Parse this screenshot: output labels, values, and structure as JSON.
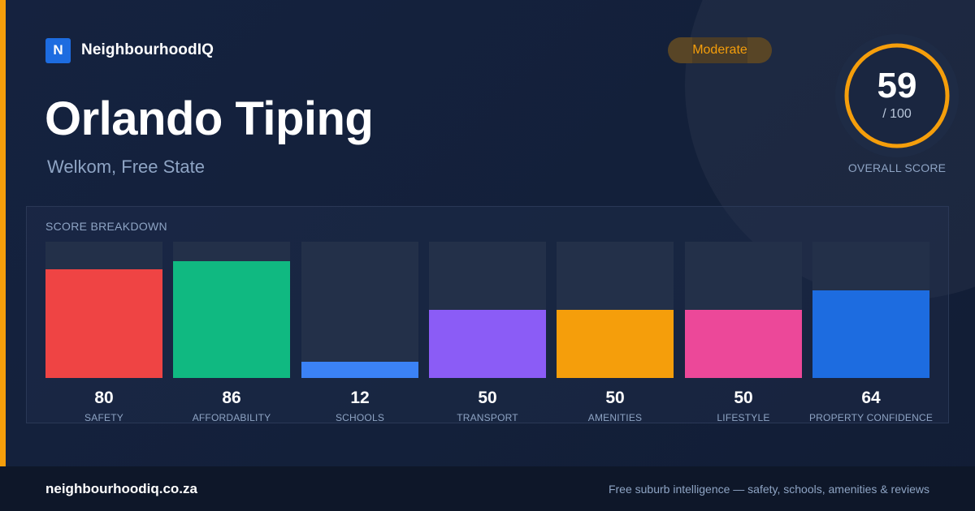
{
  "brand": {
    "logo_letter": "N",
    "name": "NeighbourhoodIQ"
  },
  "suburb": {
    "name": "Orlando Tiping",
    "location": "Welkom, Free State"
  },
  "rating_badge": "Moderate",
  "overall": {
    "score": 59,
    "score_text": "59",
    "max_text": "/ 100",
    "caption": "OVERALL SCORE",
    "ring_color": "#f59e0b"
  },
  "chart_data": {
    "type": "bar",
    "title": "SCORE BREAKDOWN",
    "ylim": [
      0,
      100
    ],
    "categories": [
      "SAFETY",
      "AFFORDABILITY",
      "SCHOOLS",
      "TRANSPORT",
      "AMENITIES",
      "LIFESTYLE",
      "PROPERTY CONFIDENCE"
    ],
    "values": [
      80,
      86,
      12,
      50,
      50,
      50,
      64
    ],
    "colors": [
      "#ef4444",
      "#10b981",
      "#3b82f6",
      "#8b5cf6",
      "#f59e0b",
      "#ec4899",
      "#1d6ce0"
    ]
  },
  "footer": {
    "url": "neighbourhoodiq.co.za",
    "tagline": "Free suburb intelligence — safety, schools, amenities & reviews"
  }
}
